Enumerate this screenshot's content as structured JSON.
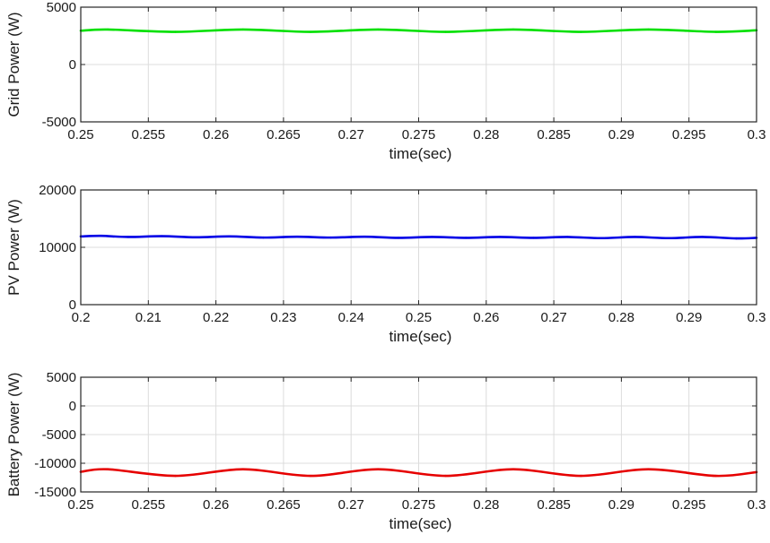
{
  "chart_data": [
    {
      "type": "line",
      "title": "",
      "xlabel": "time(sec)",
      "ylabel": "Grid Power (W)",
      "xlim": [
        0.25,
        0.3
      ],
      "ylim": [
        -5000,
        5000
      ],
      "xticks": [
        0.25,
        0.255,
        0.26,
        0.265,
        0.27,
        0.275,
        0.28,
        0.285,
        0.29,
        0.295,
        0.3
      ],
      "xtick_labels": [
        "0.25",
        "0.255",
        "0.26",
        "0.265",
        "0.27",
        "0.275",
        "0.28",
        "0.285",
        "0.29",
        "0.295",
        "0.3"
      ],
      "yticks": [
        -5000,
        0,
        5000
      ],
      "ytick_labels": [
        "-5000",
        "0",
        "5000"
      ],
      "grid": true,
      "color": "#00e000",
      "series": [
        {
          "x": [
            0.25,
            0.252,
            0.257,
            0.262,
            0.267,
            0.272,
            0.277,
            0.282,
            0.287,
            0.292,
            0.297,
            0.3
          ],
          "values": [
            2950,
            3050,
            2850,
            3050,
            2850,
            3050,
            2850,
            3050,
            2850,
            3050,
            2850,
            2980
          ]
        }
      ]
    },
    {
      "type": "line",
      "title": "",
      "xlabel": "time(sec)",
      "ylabel": "PV Power (W)",
      "xlim": [
        0.2,
        0.3
      ],
      "ylim": [
        0,
        20000
      ],
      "xticks": [
        0.2,
        0.21,
        0.22,
        0.23,
        0.24,
        0.25,
        0.26,
        0.27,
        0.28,
        0.29,
        0.3
      ],
      "xtick_labels": [
        "0.2",
        "0.21",
        "0.22",
        "0.23",
        "0.24",
        "0.25",
        "0.26",
        "0.27",
        "0.28",
        "0.29",
        "0.3"
      ],
      "yticks": [
        0,
        10000,
        20000
      ],
      "ytick_labels": [
        "0",
        "10000",
        "20000"
      ],
      "grid": true,
      "color": "#0000e6",
      "series": [
        {
          "x": [
            0.2,
            0.203,
            0.207,
            0.212,
            0.217,
            0.222,
            0.227,
            0.232,
            0.237,
            0.242,
            0.247,
            0.252,
            0.257,
            0.262,
            0.267,
            0.272,
            0.277,
            0.282,
            0.287,
            0.292,
            0.297,
            0.3
          ],
          "values": [
            11900,
            12000,
            11800,
            11950,
            11750,
            11900,
            11700,
            11850,
            11700,
            11850,
            11650,
            11800,
            11650,
            11800,
            11650,
            11800,
            11600,
            11800,
            11600,
            11800,
            11550,
            11650
          ]
        }
      ]
    },
    {
      "type": "line",
      "title": "",
      "xlabel": "time(sec)",
      "ylabel": "Battery Power (W)",
      "xlim": [
        0.25,
        0.3
      ],
      "ylim": [
        -15000,
        5000
      ],
      "xticks": [
        0.25,
        0.255,
        0.26,
        0.265,
        0.27,
        0.275,
        0.28,
        0.285,
        0.29,
        0.295,
        0.3
      ],
      "xtick_labels": [
        "0.25",
        "0.255",
        "0.26",
        "0.265",
        "0.27",
        "0.275",
        "0.28",
        "0.285",
        "0.29",
        "0.295",
        "0.3"
      ],
      "yticks": [
        -15000,
        -10000,
        -5000,
        0,
        5000
      ],
      "ytick_labels": [
        "-15000",
        "-10000",
        "-5000",
        "0",
        "5000"
      ],
      "grid": true,
      "color": "#e60000",
      "series": [
        {
          "x": [
            0.25,
            0.252,
            0.257,
            0.262,
            0.267,
            0.272,
            0.277,
            0.282,
            0.287,
            0.292,
            0.297,
            0.3
          ],
          "values": [
            -11500,
            -11050,
            -12200,
            -11050,
            -12200,
            -11050,
            -12200,
            -11050,
            -12200,
            -11050,
            -12200,
            -11550
          ]
        }
      ]
    }
  ]
}
